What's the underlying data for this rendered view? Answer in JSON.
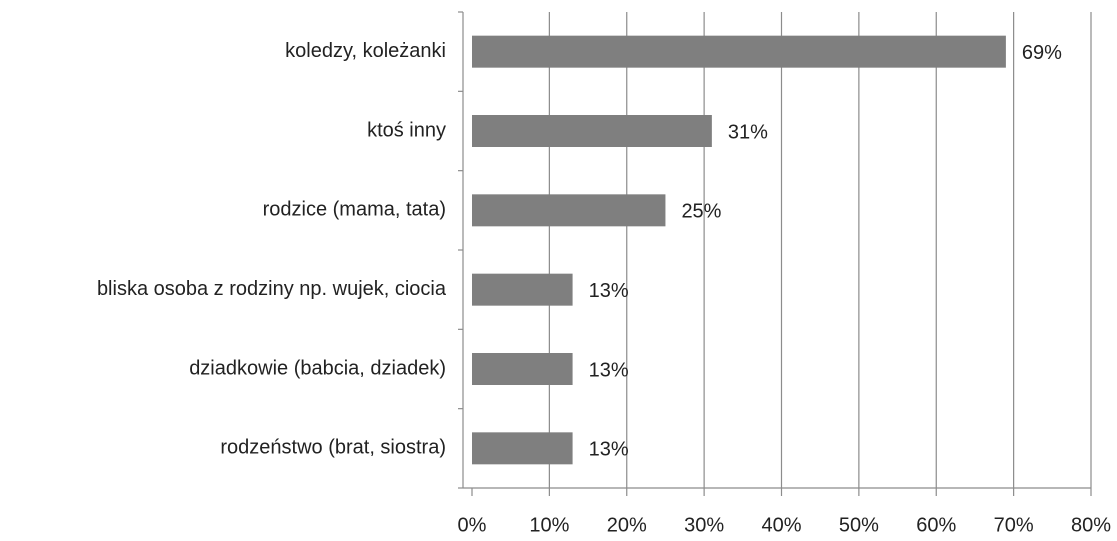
{
  "chart_data": {
    "type": "bar",
    "orientation": "horizontal",
    "categories": [
      "koledzy, koleżanki",
      "ktoś inny",
      "rodzice (mama, tata)",
      "bliska osoba z rodziny np. wujek, ciocia",
      "dziadkowie (babcia, dziadek)",
      "rodzeństwo (brat, siostra)"
    ],
    "values": [
      69,
      31,
      25,
      13,
      13,
      13
    ],
    "value_labels": [
      "69%",
      "31%",
      "25%",
      "13%",
      "13%",
      "13%"
    ],
    "color": "#7f7f7f",
    "xlim": [
      0,
      80
    ],
    "xticks": [
      {
        "value": 0,
        "label": "0%"
      },
      {
        "value": 10,
        "label": "10%"
      },
      {
        "value": 20,
        "label": "20%"
      },
      {
        "value": 30,
        "label": "30%"
      },
      {
        "value": 40,
        "label": "40%"
      },
      {
        "value": 50,
        "label": "50%"
      },
      {
        "value": 60,
        "label": "60%"
      },
      {
        "value": 70,
        "label": "70%"
      },
      {
        "value": 80,
        "label": "80%"
      }
    ],
    "grid": true
  }
}
